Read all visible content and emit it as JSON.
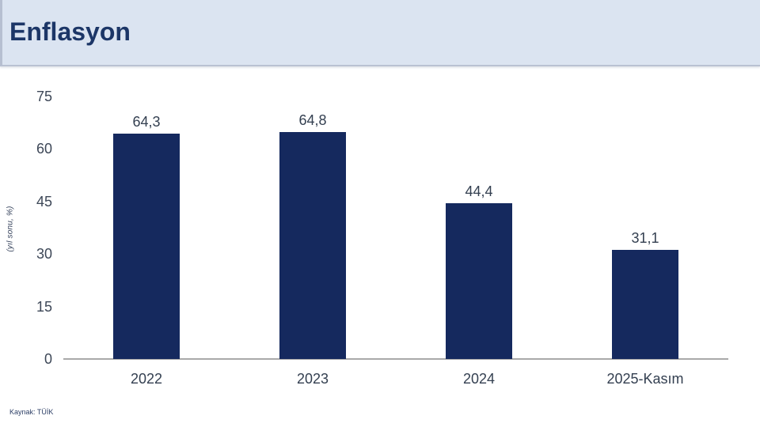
{
  "header": {
    "title": "Enflasyon"
  },
  "source": {
    "label": "Kaynak: TÜİK"
  },
  "colors": {
    "bar": "#15295e",
    "header_bg": "#dbe4f1",
    "title_text": "#1c3667",
    "axis_line": "#a9a9a9",
    "label_text": "#333f50"
  },
  "chart_data": {
    "type": "bar",
    "categories": [
      "2022",
      "2023",
      "2024",
      "2025-Kasım"
    ],
    "values": [
      64.3,
      64.8,
      44.4,
      31.1
    ],
    "value_labels": [
      "64,3",
      "64,8",
      "44,4",
      "31,1"
    ],
    "title": "Enflasyon",
    "xlabel": "",
    "ylabel": "(yıl sonu, %)",
    "ylim": [
      0,
      75
    ],
    "yticks": [
      0,
      15,
      30,
      45,
      60,
      75
    ],
    "grid": false,
    "legend_position": "none",
    "bar_color": "#15295e"
  }
}
